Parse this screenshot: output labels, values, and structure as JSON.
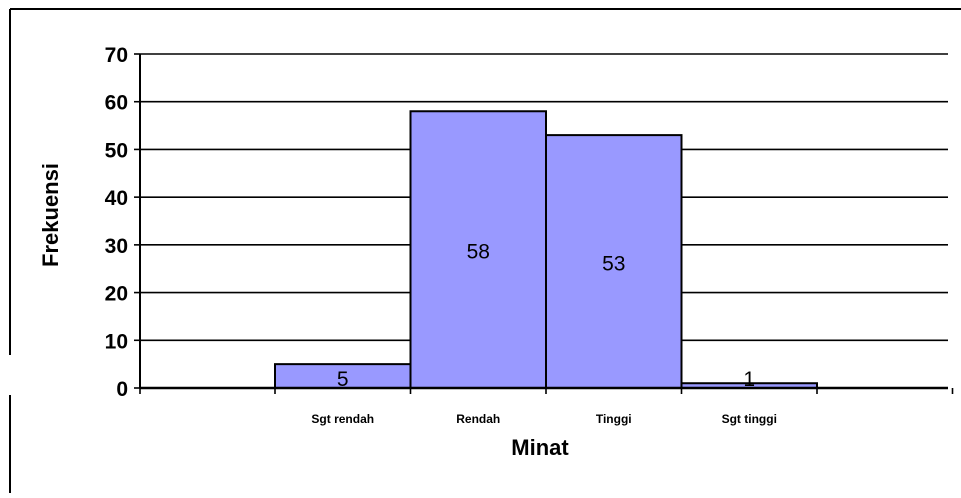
{
  "chart_data": {
    "type": "bar",
    "title": "",
    "xlabel": "Minat",
    "ylabel": "Frekuensi",
    "categories": [
      "Sgt rendah",
      "Rendah",
      "Tinggi",
      "Sgt tinggi"
    ],
    "values": [
      5,
      58,
      53,
      1
    ],
    "data_labels": [
      "5",
      "58",
      "53",
      "1"
    ],
    "ylim": [
      0,
      70
    ],
    "yticks": [
      0,
      10,
      20,
      30,
      40,
      50,
      60,
      70
    ],
    "ytick_labels": [
      "0",
      "10",
      "20",
      "30",
      "40",
      "50",
      "60",
      "70"
    ],
    "grid": true,
    "legend": "none",
    "bar_color": "#9999ff",
    "bar_edge_color": "#000000"
  }
}
